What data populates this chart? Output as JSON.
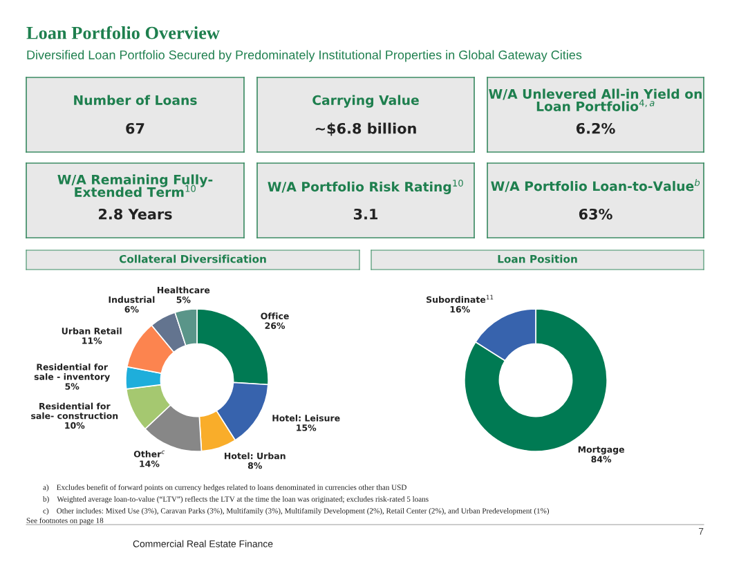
{
  "chart_data": [
    {
      "type": "other",
      "title": "Loan Portfolio Overview",
      "subtitle": "Diversified Loan Portfolio Secured by Predominately Institutional Properties in Global Gateway Cities"
    },
    {
      "type": "other",
      "title": "Number of Loans",
      "annotations": [
        "67"
      ]
    },
    {
      "type": "other",
      "title": "Carrying Value",
      "annotations": [
        "~$6.8 billion"
      ]
    },
    {
      "type": "other",
      "title": "W/A Unlevered All-in Yield on\nLoan Portfolio$^{4,a}$",
      "annotations": [
        "6.2%"
      ]
    },
    {
      "type": "other",
      "title": "W/A Remaining Fully-\nExtended Term$^{10}$",
      "annotations": [
        "2.8 Years"
      ]
    },
    {
      "type": "other",
      "title": "W/A Portfolio Risk Rating$^{10}$",
      "annotations": [
        "3.1"
      ]
    },
    {
      "type": "other",
      "title": "W/A Portfolio Loan-to-Value$^{b}$",
      "annotations": [
        "63%"
      ]
    },
    {
      "type": "donut",
      "title": "Collateral Diversification",
      "categories": [
        "Office",
        "Hotel: Leisure",
        "Hotel: Urban",
        "Other$^{c}$",
        "Residential for\nsale- construction",
        "Residential for\nsale - inventory",
        "Urban Retail",
        "Industrial",
        "Healthcare"
      ],
      "values": [
        26,
        15,
        8,
        14,
        10,
        5,
        11,
        6,
        5
      ],
      "value_labels": [
        "26%",
        "15%",
        "8%",
        "14%",
        "10%",
        "5%",
        "11%",
        "6%",
        "5%"
      ],
      "colors": [
        "#007a53",
        "#3763ad",
        "#f9ad2a",
        "#878787",
        "#a5c870",
        "#1eaedb",
        "#fc844f",
        "#63748f",
        "#5a9589"
      ]
    },
    {
      "type": "donut",
      "title": "Loan Position",
      "categories": [
        "Mortgage",
        "Subordinate$^{11}$"
      ],
      "values": [
        84,
        16
      ],
      "value_labels": [
        "84%",
        "16%"
      ],
      "colors": [
        "#007a53",
        "#3763ad"
      ]
    },
    {
      "type": "other",
      "annotations": [
        "a) Excludes benefit of forward points on currency hedges related to loans denominated in currencies other than USD",
        "b) Weighted average loan-to-value (“LTV”) reflects the LTV at the time the loan was originated; excludes risk-rated 5 loans",
        "c) Other includes: Mixed Use (3%), Caravan Parks (3%), Multifamily (3%), Multifamily Development (2%), Retail Center (2%), and Urban Predevelopment (1%)",
        "See footnotes on page 18",
        "Commercial Real Estate Finance",
        "7"
      ]
    }
  ]
}
